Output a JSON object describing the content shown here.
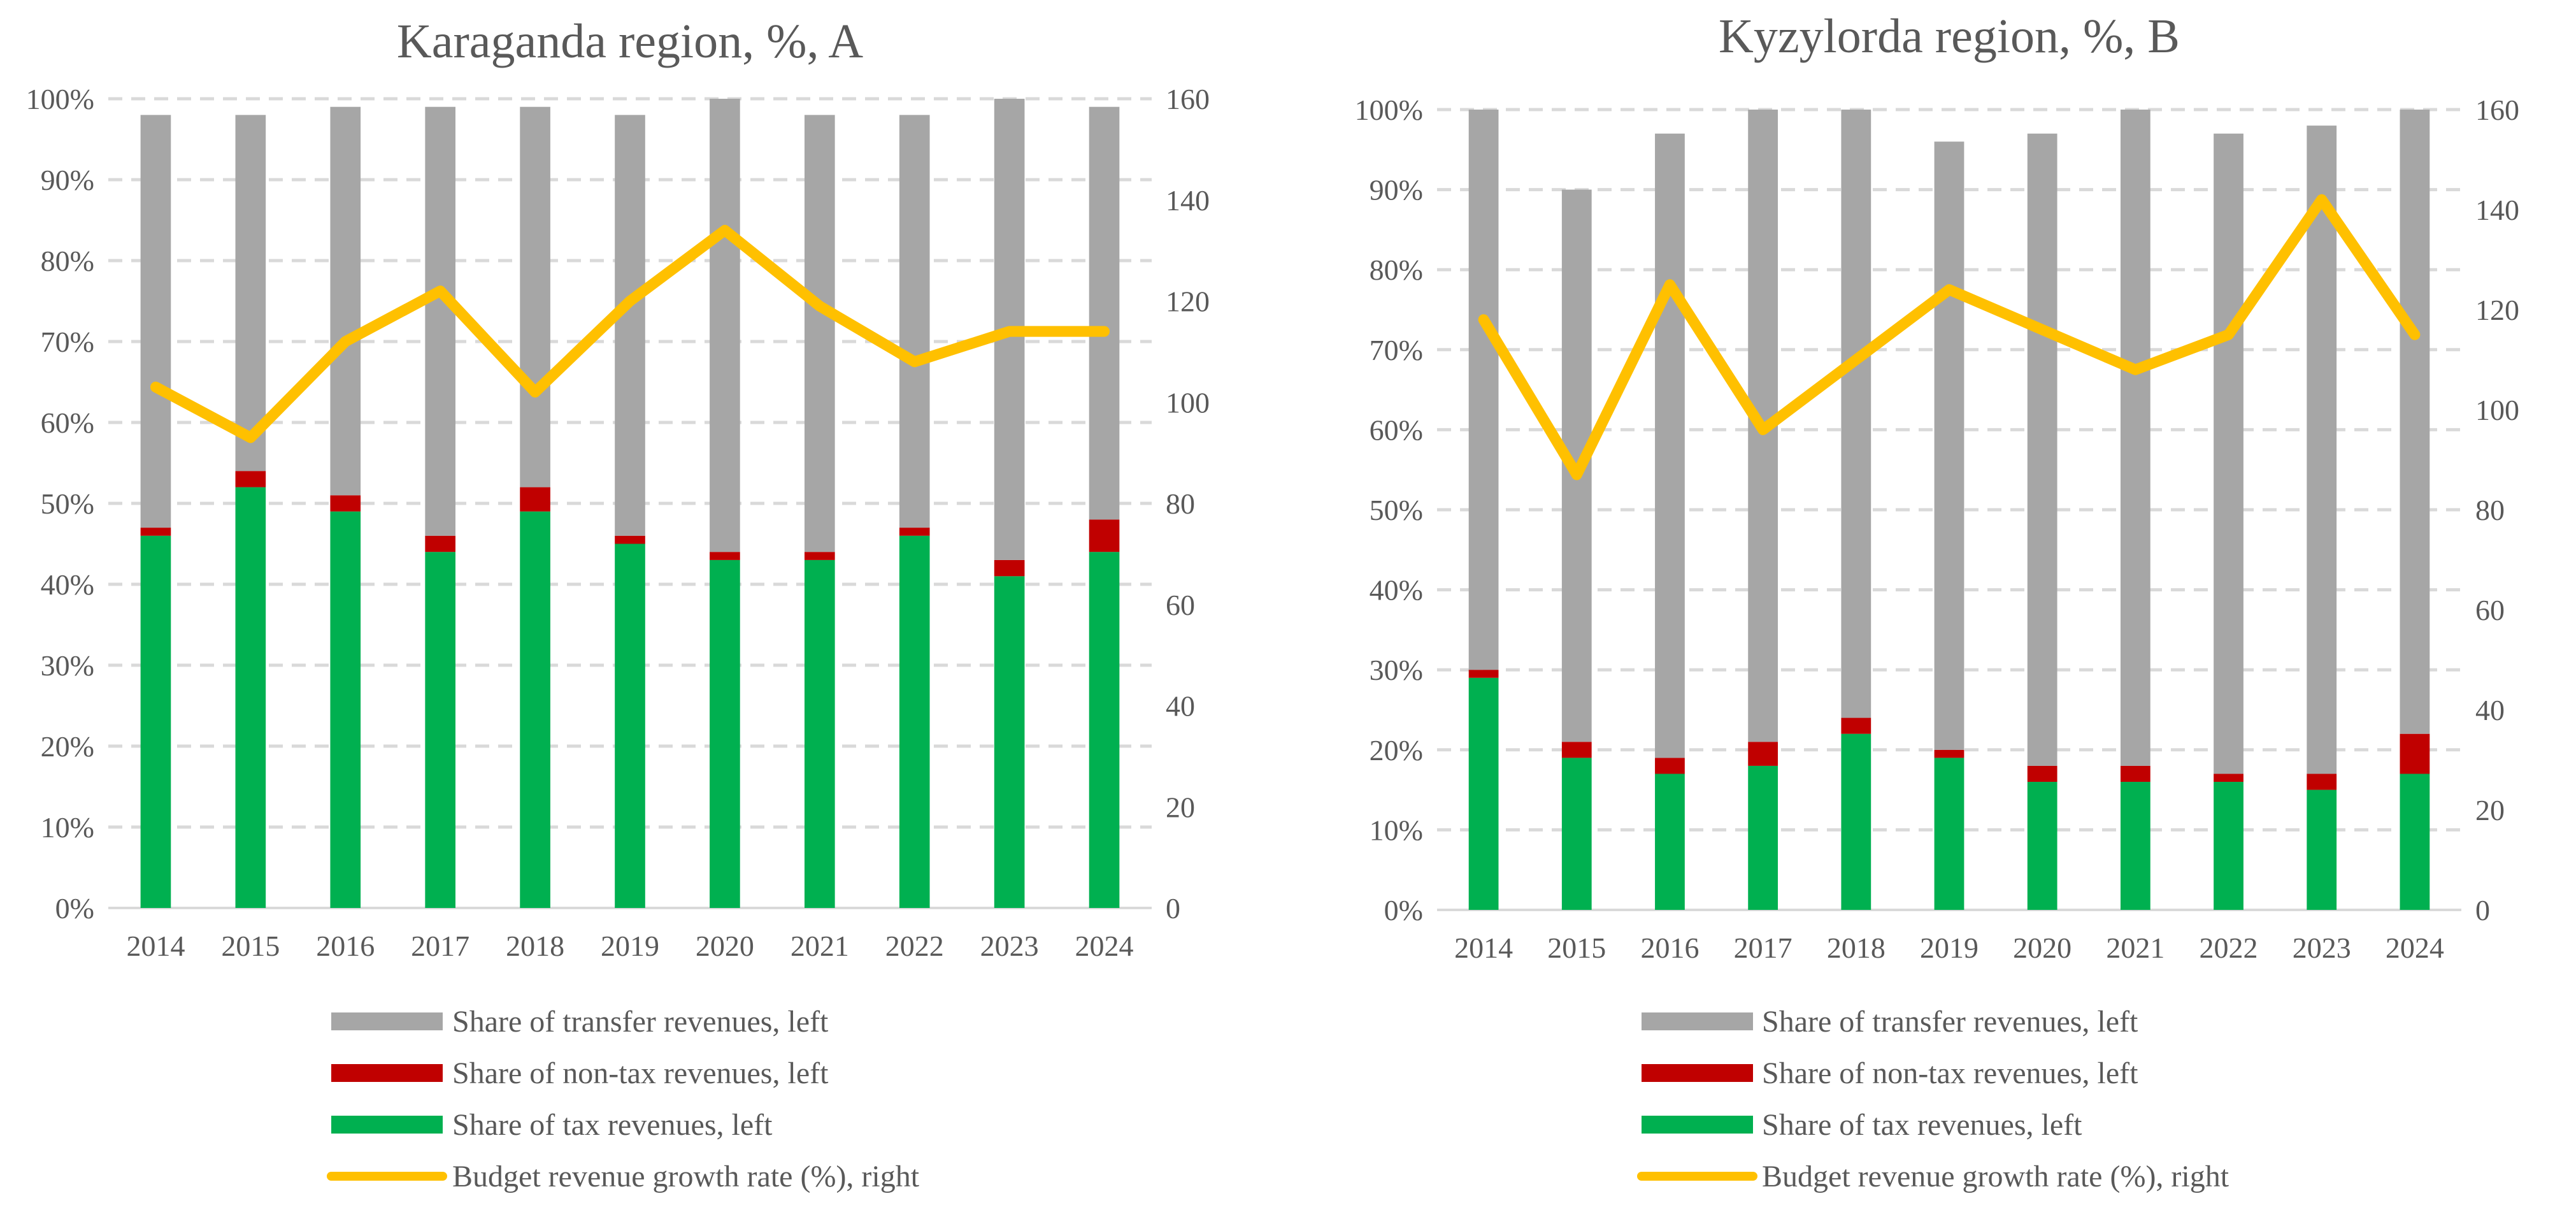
{
  "chart_data": [
    {
      "type": "bar",
      "stacked": true,
      "title": "Karaganda region, %, A",
      "categories": [
        "2014",
        "2015",
        "2016",
        "2017",
        "2018",
        "2019",
        "2020",
        "2021",
        "2022",
        "2023",
        "2024"
      ],
      "y_left": {
        "range": [
          0,
          100
        ],
        "ticks": [
          "0%",
          "10%",
          "20%",
          "30%",
          "40%",
          "50%",
          "60%",
          "70%",
          "80%",
          "90%",
          "100%"
        ]
      },
      "y_right": {
        "range": [
          0,
          160
        ],
        "ticks": [
          "0",
          "20",
          "40",
          "60",
          "80",
          "100",
          "120",
          "140",
          "160"
        ]
      },
      "grid": "horizontal dashed",
      "legend_position": "bottom",
      "series": [
        {
          "name": "Share of tax revenues, left",
          "kind": "bar",
          "axis": "left",
          "color": "#00b050",
          "values": [
            46,
            52,
            49,
            44,
            49,
            45,
            43,
            43,
            46,
            41,
            44
          ]
        },
        {
          "name": "Share of non-tax revenues, left",
          "kind": "bar",
          "axis": "left",
          "color": "#c00000",
          "values": [
            1,
            2,
            2,
            2,
            3,
            1,
            1,
            1,
            1,
            2,
            4
          ]
        },
        {
          "name": "Share of transfer revenues, left",
          "kind": "bar",
          "axis": "left",
          "color": "#a6a6a6",
          "values": [
            51,
            44,
            48,
            53,
            47,
            52,
            56,
            54,
            51,
            57,
            51
          ]
        },
        {
          "name": "Budget revenue growth rate (%), right",
          "kind": "line",
          "axis": "right",
          "color": "#ffc000",
          "values": [
            103,
            93,
            112,
            122,
            102,
            120,
            134,
            119,
            108,
            114,
            114
          ]
        }
      ],
      "legend_order": [
        2,
        1,
        0,
        3
      ]
    },
    {
      "type": "bar",
      "stacked": true,
      "title": "Kyzylorda region, %, B",
      "categories": [
        "2014",
        "2015",
        "2016",
        "2017",
        "2018",
        "2019",
        "2020",
        "2021",
        "2022",
        "2023",
        "2024"
      ],
      "y_left": {
        "range": [
          0,
          100
        ],
        "ticks": [
          "0%",
          "10%",
          "20%",
          "30%",
          "40%",
          "50%",
          "60%",
          "70%",
          "80%",
          "90%",
          "100%"
        ]
      },
      "y_right": {
        "range": [
          0,
          160
        ],
        "ticks": [
          "0",
          "20",
          "40",
          "60",
          "80",
          "100",
          "120",
          "140",
          "160"
        ]
      },
      "grid": "horizontal dashed",
      "legend_position": "bottom",
      "series": [
        {
          "name": "Share of tax revenues, left",
          "kind": "bar",
          "axis": "left",
          "color": "#00b050",
          "values": [
            29,
            19,
            17,
            18,
            22,
            19,
            16,
            16,
            16,
            15,
            17
          ]
        },
        {
          "name": "Share of non-tax revenues, left",
          "kind": "bar",
          "axis": "left",
          "color": "#c00000",
          "values": [
            1,
            2,
            2,
            3,
            2,
            1,
            2,
            2,
            1,
            2,
            5
          ]
        },
        {
          "name": "Share of transfer revenues, left",
          "kind": "bar",
          "axis": "left",
          "color": "#a6a6a6",
          "values": [
            70,
            69,
            78,
            79,
            76,
            76,
            79,
            82,
            80,
            81,
            78
          ]
        },
        {
          "name": "Budget revenue growth rate (%), right",
          "kind": "line",
          "axis": "right",
          "color": "#ffc000",
          "values": [
            118,
            87,
            125,
            96,
            110,
            124,
            116,
            108,
            115,
            142,
            115
          ]
        }
      ],
      "legend_order": [
        2,
        1,
        0,
        3
      ]
    }
  ]
}
